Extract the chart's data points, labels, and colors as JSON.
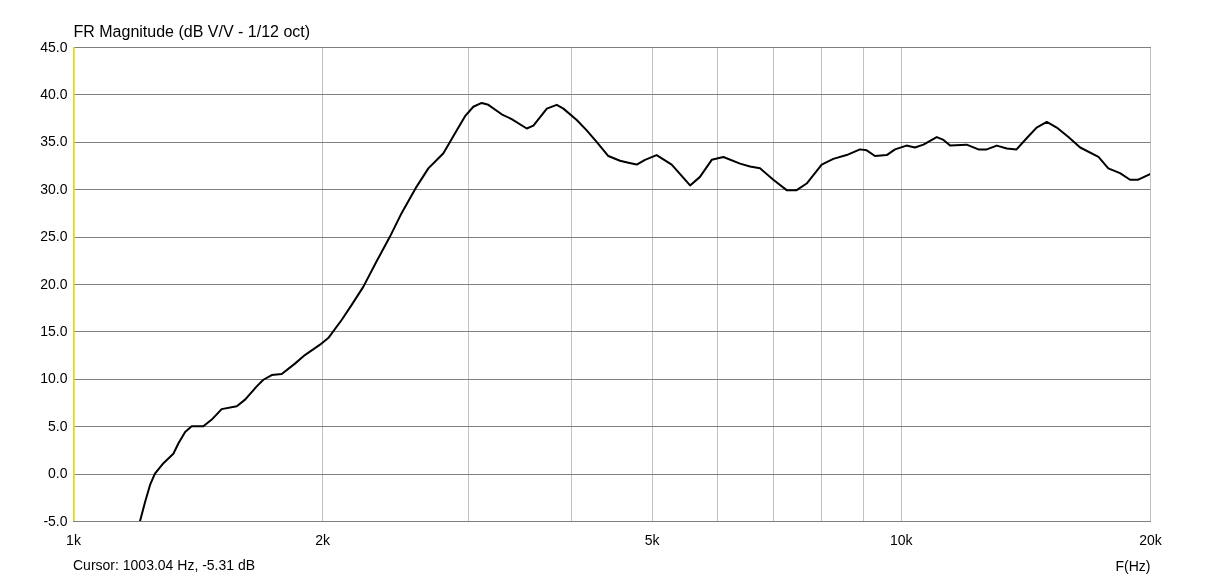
{
  "chart_data": {
    "type": "line",
    "ylabel": "FR Magnitude (dB V/V - 1/12 oct)",
    "xlabel": "F(Hz)",
    "annotations": [
      "Cursor: 1003.04 Hz, -5.31 dB"
    ],
    "log": "x",
    "grid": true,
    "line_style": "solid",
    "xlim": [
      1000,
      20000
    ],
    "xticks": [
      {
        "value": 1000,
        "label": "1k"
      },
      {
        "value": 2000,
        "label": "2k"
      },
      {
        "value": 3000,
        "label": null
      },
      {
        "value": 4000,
        "label": null
      },
      {
        "value": 5000,
        "label": "5k"
      },
      {
        "value": 6000,
        "label": null
      },
      {
        "value": 7000,
        "label": null
      },
      {
        "value": 8000,
        "label": null
      },
      {
        "value": 9000,
        "label": null
      },
      {
        "value": 10000,
        "label": "10k"
      },
      {
        "value": 20000,
        "label": "20k"
      }
    ],
    "ylim": [
      -5,
      45
    ],
    "yticks": [
      {
        "value": -5,
        "label": "-5.0"
      },
      {
        "value": 0,
        "label": "0.0"
      },
      {
        "value": 5,
        "label": "5.0"
      },
      {
        "value": 10,
        "label": "10.0"
      },
      {
        "value": 15,
        "label": "15.0"
      },
      {
        "value": 20,
        "label": "20.0"
      },
      {
        "value": 25,
        "label": "25.0"
      },
      {
        "value": 30,
        "label": "30.0"
      },
      {
        "value": 35,
        "label": "35.0"
      },
      {
        "value": 40,
        "label": "40.0"
      },
      {
        "value": 45,
        "label": "45.0"
      }
    ],
    "ref_lines": [
      {
        "axis": "x",
        "value": 1003.04,
        "color": "#e6e600"
      }
    ],
    "x": [
      1205,
      1222,
      1239,
      1256,
      1286,
      1322,
      1341,
      1366,
      1391,
      1437,
      1471,
      1512,
      1577,
      1614,
      1667,
      1698,
      1738,
      1787,
      1854,
      1906,
      1988,
      2034,
      2111,
      2171,
      2242,
      2327,
      2415,
      2495,
      2602,
      2687,
      2802,
      2894,
      2976,
      3045,
      3117,
      3175,
      3295,
      3388,
      3533,
      3599,
      3736,
      3840,
      3912,
      4060,
      4174,
      4291,
      4433,
      4579,
      4687,
      4797,
      4909,
      5070,
      5287,
      5565,
      5720,
      5910,
      6105,
      6395,
      6574,
      6760,
      7015,
      7279,
      7485,
      7696,
      8025,
      8288,
      8601,
      8927,
      9095,
      9307,
      9616,
      9841,
      10160,
      10400,
      10650,
      11050,
      11260,
      11470,
      12010,
      12410,
      12700,
      13060,
      13430,
      13800,
      14200,
      14590,
      15010,
      15430,
      15940,
      16470,
      17330,
      17810,
      18400,
      18920,
      19360,
      20000
    ],
    "series": [
      {
        "color": "#000000",
        "values": [
          -5.0,
          -3.0,
          -1.2,
          0.0,
          1.1,
          2.1,
          3.2,
          4.4,
          5.0,
          5.0,
          5.7,
          6.8,
          7.1,
          7.8,
          9.2,
          9.9,
          10.4,
          10.5,
          11.6,
          12.5,
          13.6,
          14.3,
          16.2,
          17.8,
          19.7,
          22.4,
          25.0,
          27.5,
          30.3,
          32.2,
          33.8,
          35.9,
          37.7,
          38.7,
          39.1,
          38.9,
          37.9,
          37.4,
          36.4,
          36.7,
          38.5,
          38.9,
          38.5,
          37.3,
          36.2,
          35.0,
          33.5,
          33.0,
          32.8,
          32.6,
          33.1,
          33.6,
          32.6,
          30.4,
          31.3,
          33.1,
          33.4,
          32.7,
          32.4,
          32.2,
          31.0,
          29.9,
          29.9,
          30.6,
          32.6,
          33.2,
          33.6,
          34.2,
          34.1,
          33.5,
          33.6,
          34.2,
          34.6,
          34.4,
          34.7,
          35.5,
          35.2,
          34.6,
          34.7,
          34.2,
          34.2,
          34.6,
          34.3,
          34.2,
          35.4,
          36.5,
          37.1,
          36.5,
          35.5,
          34.4,
          33.4,
          32.2,
          31.7,
          31.0,
          31.0,
          31.6
        ]
      }
    ]
  }
}
